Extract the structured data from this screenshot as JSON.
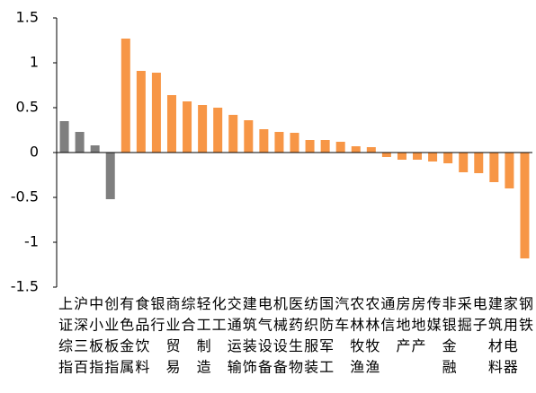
{
  "chart_data": {
    "type": "bar",
    "categories": [
      "上证综指",
      "沪深三百",
      "中小板指",
      "创业板指",
      "有色金属",
      "食品饮料",
      "银行",
      "商业贸易",
      "综合",
      "轻工制造",
      "化工",
      "交通运输",
      "建筑装饰",
      "电气设备",
      "机械设备",
      "医药生物",
      "纺织服装",
      "国防军工",
      "汽车",
      "农林牧渔",
      "农林牧渔",
      "通信",
      "房地产",
      "房地产",
      "传媒",
      "非银金融",
      "采掘",
      "电子",
      "建筑材料",
      "家用电器",
      "钢铁"
    ],
    "values": [
      0.35,
      0.23,
      0.08,
      -0.52,
      1.27,
      0.91,
      0.89,
      0.64,
      0.57,
      0.53,
      0.5,
      0.42,
      0.36,
      0.26,
      0.23,
      0.22,
      0.14,
      0.14,
      0.12,
      0.07,
      0.06,
      -0.05,
      -0.08,
      -0.08,
      -0.1,
      -0.12,
      -0.22,
      -0.23,
      -0.33,
      -0.4,
      -1.18
    ],
    "colors": [
      "#7f7f7f",
      "#7f7f7f",
      "#7f7f7f",
      "#7f7f7f",
      "#f79646",
      "#f79646",
      "#f79646",
      "#f79646",
      "#f79646",
      "#f79646",
      "#f79646",
      "#f79646",
      "#f79646",
      "#f79646",
      "#f79646",
      "#f79646",
      "#f79646",
      "#f79646",
      "#f79646",
      "#f79646",
      "#f79646",
      "#f79646",
      "#f79646",
      "#f79646",
      "#f79646",
      "#f79646",
      "#f79646",
      "#f79646",
      "#f79646",
      "#f79646",
      "#f79646"
    ],
    "ylim": [
      -1.5,
      1.5
    ],
    "yticks": [
      -1.5,
      -1,
      -0.5,
      0,
      0.5,
      1,
      1.5
    ],
    "grid": false
  }
}
